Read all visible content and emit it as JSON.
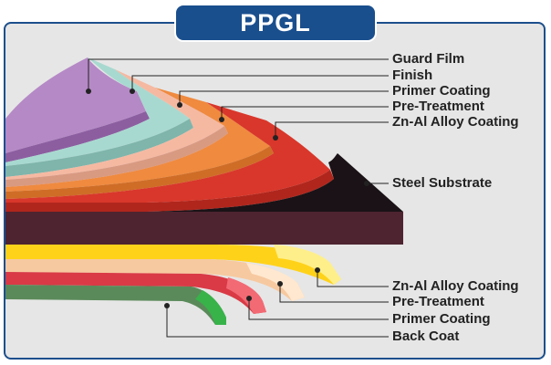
{
  "title": "PPGL",
  "colors": {
    "frame_border": "#1c4f8c",
    "badge_bg": "#1a4f8e",
    "background": "#e6e6e6",
    "leader_line": "#222222"
  },
  "top_layers": [
    {
      "name": "Guard Film",
      "color": "#b589c6",
      "shade": "#8c5ea0"
    },
    {
      "name": "Finish",
      "color": "#a8d9d0",
      "shade": "#7fb5ab"
    },
    {
      "name": "Primer Coating",
      "color": "#f5b9a2",
      "shade": "#d99a82"
    },
    {
      "name": "Pre-Treatment",
      "color": "#ef8a3f",
      "shade": "#cf6d27"
    },
    {
      "name": "Zn-Al Alloy Coating",
      "color": "#d9372b",
      "shade": "#b0261d"
    }
  ],
  "substrate": {
    "name": "Steel Substrate",
    "color": "#4e2430",
    "top_color": "#1a1216"
  },
  "bottom_layers": [
    {
      "name": "Zn-Al Alloy Coating",
      "color": "#ffd21a",
      "tip": "#ffef8a"
    },
    {
      "name": "Pre-Treatment",
      "color": "#f7c9a0",
      "tip": "#ffe8cf"
    },
    {
      "name": "Primer Coating",
      "color": "#d93a46",
      "tip": "#f26a74"
    },
    {
      "name": "Back Coat",
      "color": "#5b8a5a",
      "tip": "#37b34a"
    }
  ]
}
